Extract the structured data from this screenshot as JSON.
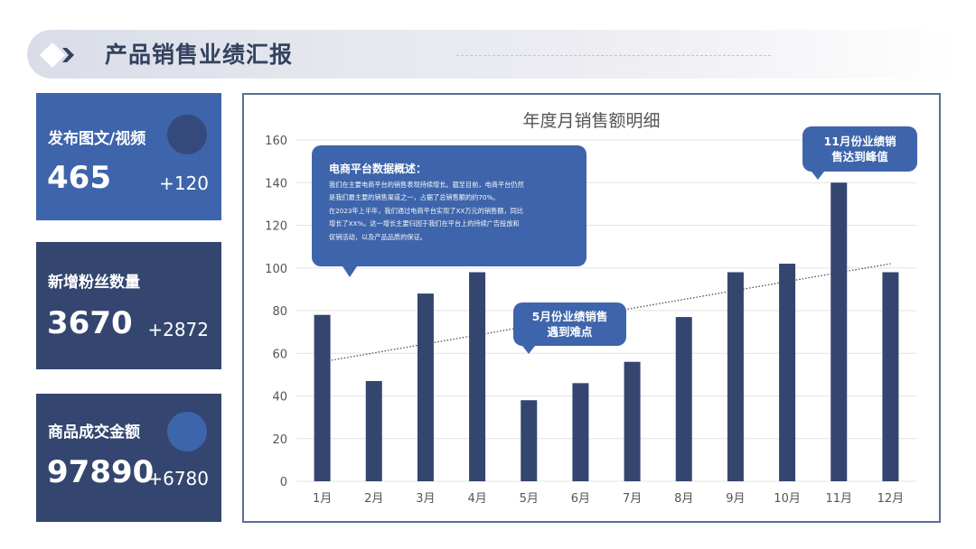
{
  "header": {
    "title": "产品销售业绩汇报",
    "logo_icon": "diamond-arrow-icon"
  },
  "kpis": [
    {
      "label": "发布图文/视频",
      "value": "465",
      "delta": "+120",
      "circle_color": "#344a7d"
    },
    {
      "label": "新增粉丝数量",
      "value": "3670",
      "delta": "+2872"
    },
    {
      "label": "商品成交金额",
      "value": "97890",
      "delta": "+6780",
      "circle_color": "#3d65ab"
    }
  ],
  "colors": {
    "bar": "#34466f",
    "accent": "#3e65ab",
    "card_dark": "#34466f",
    "frame": "#5a6f96",
    "grid": "#e3e3e3"
  },
  "callouts": {
    "main": {
      "title": "电商平台数据概述：",
      "lines": [
        "我们在主要电商平台的销售表现持续增长。截至目前，电商平台仍然",
        "是我们最主要的销售渠道之一，占据了总销售额的约70%。",
        "在2023年上半年，我们通过电商平台实现了XX万元的销售额，同比",
        "增长了XX%。这一增长主要归因于我们在平台上的持续广告投放和",
        "促销活动，以及产品品质的保证。"
      ]
    },
    "may": {
      "lines": [
        "5月份业绩销售",
        "遇到难点"
      ]
    },
    "nov": {
      "lines": [
        "11月份业绩销",
        "售达到峰值"
      ]
    }
  },
  "chart_data": {
    "type": "bar",
    "title": "年度月销售额明细",
    "xlabel": "",
    "ylabel": "",
    "categories": [
      "1月",
      "2月",
      "3月",
      "4月",
      "5月",
      "6月",
      "7月",
      "8月",
      "9月",
      "10月",
      "11月",
      "12月"
    ],
    "values": [
      78,
      47,
      88,
      98,
      38,
      46,
      56,
      77,
      98,
      102,
      140,
      98
    ],
    "ylim": [
      0,
      160
    ],
    "yticks": [
      0,
      20,
      40,
      60,
      80,
      100,
      120,
      140,
      160
    ],
    "grid": true,
    "legend": "none",
    "trendline": {
      "type": "linear",
      "style": "dotted",
      "start": 56,
      "end": 102
    },
    "annotations": [
      {
        "target": "5月",
        "text": "5月份业绩销售遇到难点"
      },
      {
        "target": "11月",
        "text": "11月份业绩销售达到峰值"
      },
      {
        "target": "1月",
        "text": "电商平台数据概述"
      }
    ]
  }
}
